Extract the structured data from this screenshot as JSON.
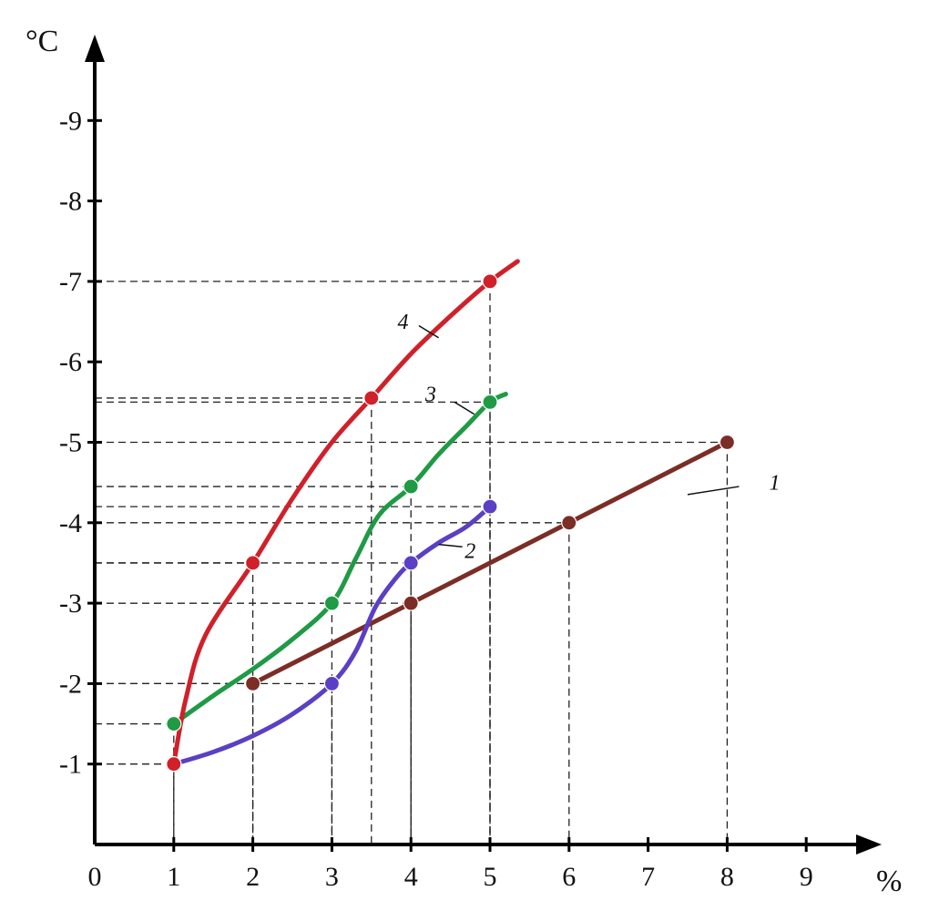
{
  "chart_data": {
    "type": "line",
    "xlabel": "%",
    "ylabel": "°C",
    "xlim": [
      0,
      10
    ],
    "ylim": [
      0,
      -10
    ],
    "x_ticks": [
      "0",
      "1",
      "2",
      "3",
      "4",
      "5",
      "6",
      "7",
      "8",
      "9"
    ],
    "y_ticks": [
      "-1",
      "-2",
      "-3",
      "-4",
      "-5",
      "-6",
      "-7",
      "-8",
      "-9"
    ],
    "grid": "dashed guide lines from marked points to both axes",
    "series": [
      {
        "name": "1",
        "color": "#7b2d26",
        "points": [
          [
            2,
            -2
          ],
          [
            4,
            -3
          ],
          [
            6,
            -4
          ],
          [
            8,
            -5
          ]
        ],
        "curve": [
          [
            2,
            -2
          ],
          [
            8,
            -5
          ]
        ],
        "label_at": [
          8.6,
          -4.5
        ],
        "label_leader": [
          [
            8.15,
            -4.45
          ],
          [
            7.5,
            -4.35
          ]
        ]
      },
      {
        "name": "2",
        "color": "#5b3fc4",
        "points": [
          [
            1,
            -1
          ],
          [
            3,
            -2
          ],
          [
            4,
            -3.5
          ],
          [
            5,
            -4.2
          ]
        ],
        "curve": [
          [
            1,
            -1
          ],
          [
            1.5,
            -1.15
          ],
          [
            2,
            -1.35
          ],
          [
            2.5,
            -1.62
          ],
          [
            3,
            -2
          ],
          [
            3.3,
            -2.4
          ],
          [
            3.55,
            -2.95
          ],
          [
            3.8,
            -3.3
          ],
          [
            4,
            -3.5
          ],
          [
            4.35,
            -3.75
          ],
          [
            4.7,
            -3.95
          ],
          [
            5,
            -4.2
          ]
        ],
        "label_at": [
          4.75,
          -3.65
        ],
        "label_leader": [
          [
            4.65,
            -3.7
          ],
          [
            4.35,
            -3.73
          ]
        ]
      },
      {
        "name": "3",
        "color": "#1f9a45",
        "points": [
          [
            1,
            -1.5
          ],
          [
            3,
            -3
          ],
          [
            4,
            -4.45
          ],
          [
            5,
            -5.5
          ]
        ],
        "curve": [
          [
            1,
            -1.5
          ],
          [
            1.5,
            -1.85
          ],
          [
            2,
            -2.18
          ],
          [
            2.5,
            -2.55
          ],
          [
            3,
            -3
          ],
          [
            3.3,
            -3.55
          ],
          [
            3.6,
            -4.1
          ],
          [
            4,
            -4.45
          ],
          [
            4.35,
            -4.85
          ],
          [
            4.7,
            -5.2
          ],
          [
            5,
            -5.5
          ],
          [
            5.2,
            -5.6
          ]
        ],
        "label_at": [
          4.25,
          -5.6
        ],
        "label_leader": [
          [
            4.55,
            -5.5
          ],
          [
            4.8,
            -5.35
          ]
        ]
      },
      {
        "name": "4",
        "color": "#d0202a",
        "points": [
          [
            1,
            -1
          ],
          [
            2,
            -3.5
          ],
          [
            3.5,
            -5.55
          ],
          [
            5,
            -7
          ]
        ],
        "curve": [
          [
            1,
            -1
          ],
          [
            1.15,
            -1.8
          ],
          [
            1.4,
            -2.6
          ],
          [
            2,
            -3.5
          ],
          [
            2.5,
            -4.3
          ],
          [
            3,
            -5
          ],
          [
            3.5,
            -5.55
          ],
          [
            4,
            -6.1
          ],
          [
            4.5,
            -6.57
          ],
          [
            5,
            -7
          ],
          [
            5.35,
            -7.25
          ]
        ],
        "label_at": [
          3.9,
          -6.5
        ],
        "label_leader": [
          [
            4.1,
            -6.45
          ],
          [
            4.35,
            -6.3
          ]
        ]
      }
    ],
    "guides": [
      {
        "x": 1,
        "y": -1
      },
      {
        "x": 1,
        "y": -1.5
      },
      {
        "x": 2,
        "y": -2
      },
      {
        "x": 2,
        "y": -3.5
      },
      {
        "x": 3,
        "y": -2
      },
      {
        "x": 3,
        "y": -3
      },
      {
        "x": 3.5,
        "y": -5.55
      },
      {
        "x": 4,
        "y": -3
      },
      {
        "x": 4,
        "y": -3.5
      },
      {
        "x": 4,
        "y": -4.45
      },
      {
        "x": 5,
        "y": -4.2
      },
      {
        "x": 5,
        "y": -5.5
      },
      {
        "x": 5,
        "y": -7
      },
      {
        "x": 6,
        "y": -4
      },
      {
        "x": 8,
        "y": -5
      }
    ]
  }
}
